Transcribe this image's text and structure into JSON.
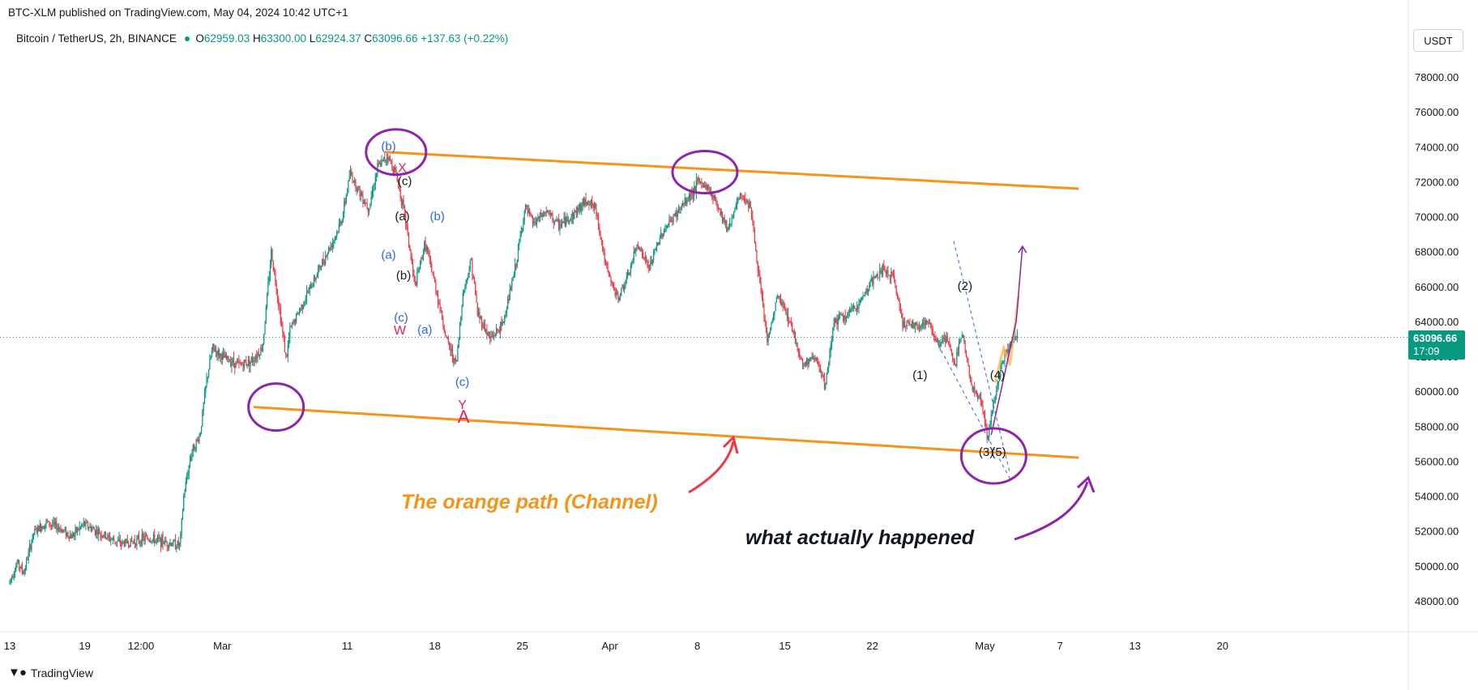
{
  "header": {
    "published": "BTC-XLM published on TradingView.com, May 04, 2024 10:42 UTC+1",
    "symbol": "Bitcoin / TetherUS, 2h, BINANCE",
    "o_label": "O",
    "o_value": "62959.03",
    "h_label": "H",
    "h_value": "63300.00",
    "l_label": "L",
    "l_value": "62924.37",
    "c_label": "C",
    "c_value": "63096.66",
    "change": "+137.63 (+0.22%)"
  },
  "currency_button": "USDT",
  "last_price": {
    "value": "63096.66",
    "countdown": "17:09"
  },
  "footer": {
    "brand": "TradingView",
    "logo_icon": "tradingview-logo-icon"
  },
  "colors": {
    "up": "#089981",
    "down": "#f23645",
    "orange": "#f7931a",
    "purple": "#8e24aa",
    "blue_label": "#2962ff",
    "red_label": "#e91e63"
  },
  "chart_data": {
    "type": "candlestick",
    "ylim": [
      46500,
      79000
    ],
    "y_ticks": [
      "48000.00",
      "50000.00",
      "52000.00",
      "54000.00",
      "56000.00",
      "58000.00",
      "60000.00",
      "62000.00",
      "64000.00",
      "66000.00",
      "68000.00",
      "70000.00",
      "72000.00",
      "74000.00",
      "76000.00",
      "78000.00"
    ],
    "x_ticks": [
      {
        "label": "13",
        "day": 0
      },
      {
        "label": "19",
        "day": 6
      },
      {
        "label": "12:00",
        "day": 10.5
      },
      {
        "label": "Mar",
        "day": 17
      },
      {
        "label": "11",
        "day": 27
      },
      {
        "label": "18",
        "day": 34
      },
      {
        "label": "25",
        "day": 41
      },
      {
        "label": "Apr",
        "day": 48
      },
      {
        "label": "8",
        "day": 55
      },
      {
        "label": "15",
        "day": 62
      },
      {
        "label": "22",
        "day": 69
      },
      {
        "label": "May",
        "day": 78
      },
      {
        "label": "7",
        "day": 84
      },
      {
        "label": "13",
        "day": 90
      },
      {
        "label": "20",
        "day": 97
      }
    ],
    "xlim_days": [
      0,
      105
    ],
    "path": [
      [
        0,
        49000
      ],
      [
        0.7,
        50200
      ],
      [
        1.2,
        49600
      ],
      [
        2,
        51900
      ],
      [
        3,
        52500
      ],
      [
        4,
        52200
      ],
      [
        5,
        51700
      ],
      [
        6,
        52400
      ],
      [
        7,
        52000
      ],
      [
        8,
        51600
      ],
      [
        9,
        51300
      ],
      [
        10,
        51400
      ],
      [
        11,
        51600
      ],
      [
        13,
        51300
      ],
      [
        13.7,
        51200
      ],
      [
        14,
        54000
      ],
      [
        14.6,
        56500
      ],
      [
        15.3,
        57500
      ],
      [
        15.8,
        60500
      ],
      [
        16.3,
        62500
      ],
      [
        17,
        62000
      ],
      [
        18.5,
        61500
      ],
      [
        19.5,
        61800
      ],
      [
        20.3,
        62500
      ],
      [
        21,
        68000
      ],
      [
        21.6,
        65000
      ],
      [
        22.2,
        61800
      ],
      [
        22.5,
        63500
      ],
      [
        23.5,
        65000
      ],
      [
        24.5,
        66500
      ],
      [
        25.5,
        68000
      ],
      [
        26.2,
        69000
      ],
      [
        26.7,
        70000
      ],
      [
        27.3,
        72500
      ],
      [
        28,
        71500
      ],
      [
        28.8,
        70500
      ],
      [
        29.5,
        72800
      ],
      [
        30.3,
        73500
      ],
      [
        31,
        72400
      ],
      [
        31.7,
        70000
      ],
      [
        32.5,
        66000
      ],
      [
        33.3,
        68500
      ],
      [
        34.2,
        65800
      ],
      [
        35,
        63000
      ],
      [
        35.8,
        61500
      ],
      [
        36.3,
        65500
      ],
      [
        37,
        67500
      ],
      [
        37.5,
        64500
      ],
      [
        38.5,
        63000
      ],
      [
        39.5,
        63800
      ],
      [
        40.5,
        67000
      ],
      [
        41.3,
        70500
      ],
      [
        42,
        69600
      ],
      [
        43,
        70300
      ],
      [
        44,
        69500
      ],
      [
        45,
        70000
      ],
      [
        46.3,
        71000
      ],
      [
        47,
        70300
      ],
      [
        47.8,
        67000
      ],
      [
        48.7,
        65300
      ],
      [
        49.5,
        66500
      ],
      [
        50.3,
        68500
      ],
      [
        51.2,
        67000
      ],
      [
        52.2,
        69000
      ],
      [
        53.2,
        70000
      ],
      [
        54.3,
        71000
      ],
      [
        55.2,
        72000
      ],
      [
        56,
        71600
      ],
      [
        56.7,
        70700
      ],
      [
        57.5,
        69300
      ],
      [
        58.5,
        71200
      ],
      [
        59.3,
        70800
      ],
      [
        60,
        66500
      ],
      [
        60.7,
        62800
      ],
      [
        61.5,
        65500
      ],
      [
        62.5,
        64000
      ],
      [
        63.5,
        61500
      ],
      [
        64.5,
        62000
      ],
      [
        65.3,
        60200
      ],
      [
        66,
        64000
      ],
      [
        67,
        64300
      ],
      [
        68,
        65000
      ],
      [
        69,
        66300
      ],
      [
        70,
        67000
      ],
      [
        70.8,
        66400
      ],
      [
        71.5,
        64000
      ],
      [
        72.5,
        63700
      ],
      [
        73.5,
        64000
      ],
      [
        74.3,
        62800
      ],
      [
        75,
        63000
      ],
      [
        75.7,
        61500
      ],
      [
        76.3,
        63500
      ],
      [
        77,
        60200
      ],
      [
        77.8,
        59500
      ],
      [
        78.3,
        57200
      ],
      [
        78.8,
        59600
      ],
      [
        79.3,
        61200
      ],
      [
        79.7,
        62200
      ],
      [
        80.2,
        62800
      ],
      [
        80.6,
        63100
      ]
    ],
    "channel_top": [
      [
        30,
        73700
      ],
      [
        85.5,
        71600
      ]
    ],
    "channel_bottom": [
      [
        19.5,
        59100
      ],
      [
        85.5,
        56200
      ]
    ],
    "blue_trend_1": [
      [
        74,
        63000
      ],
      [
        80,
        55000
      ]
    ],
    "blue_trend_2": [
      [
        75.5,
        68600
      ],
      [
        80,
        55300
      ]
    ],
    "purple_arrow": [
      [
        78.5,
        57500
      ],
      [
        80.5,
        64000
      ],
      [
        81,
        68300
      ]
    ],
    "orange_projection": [
      [
        78.8,
        60500
      ],
      [
        79.5,
        62500
      ],
      [
        80,
        61500
      ],
      [
        80.7,
        65500
      ]
    ],
    "wave_labels": [
      {
        "text": "(b)",
        "day": 30.3,
        "price": 73800,
        "color": "#2962ff"
      },
      {
        "text": "X",
        "day": 31.4,
        "price": 72550,
        "color": "#e91e63"
      },
      {
        "text": "(c)",
        "day": 31.6,
        "price": 71800,
        "color": "#131722"
      },
      {
        "text": "(a)",
        "day": 31.4,
        "price": 69800,
        "color": "#131722"
      },
      {
        "text": "(b)",
        "day": 34.2,
        "price": 69800,
        "color": "#2962ff"
      },
      {
        "text": "(a)",
        "day": 30.3,
        "price": 67600,
        "color": "#2962ff"
      },
      {
        "text": "(b)",
        "day": 31.5,
        "price": 66400,
        "color": "#131722"
      },
      {
        "text": "(c)",
        "day": 31.3,
        "price": 64000,
        "color": "#2962ff"
      },
      {
        "text": "W",
        "day": 31.2,
        "price": 63250,
        "color": "#e91e63"
      },
      {
        "text": "(a)",
        "day": 33.2,
        "price": 63300,
        "color": "#2962ff"
      },
      {
        "text": "(c)",
        "day": 36.2,
        "price": 60300,
        "color": "#2962ff"
      },
      {
        "text": "Y",
        "day": 36.2,
        "price": 59000,
        "color": "#e91e63"
      },
      {
        "text": "A",
        "day": 36.3,
        "price": 58200,
        "color": "#e91e63"
      },
      {
        "text": "(2)",
        "day": 76.4,
        "price": 65800,
        "color": "#131722"
      },
      {
        "text": "(1)",
        "day": 72.8,
        "price": 60700,
        "color": "#131722"
      },
      {
        "text": "(4)",
        "day": 79,
        "price": 60700,
        "color": "#131722"
      },
      {
        "text": "(3)",
        "day": 78.1,
        "price": 56300,
        "color": "#131722"
      },
      {
        "text": "(5)",
        "day": 79.1,
        "price": 56300,
        "color": "#131722"
      }
    ],
    "annotations": [
      {
        "text": "The orange path (Channel)",
        "color": "#f7931a"
      },
      {
        "text": "what actually happened",
        "color": "#131722"
      }
    ]
  }
}
